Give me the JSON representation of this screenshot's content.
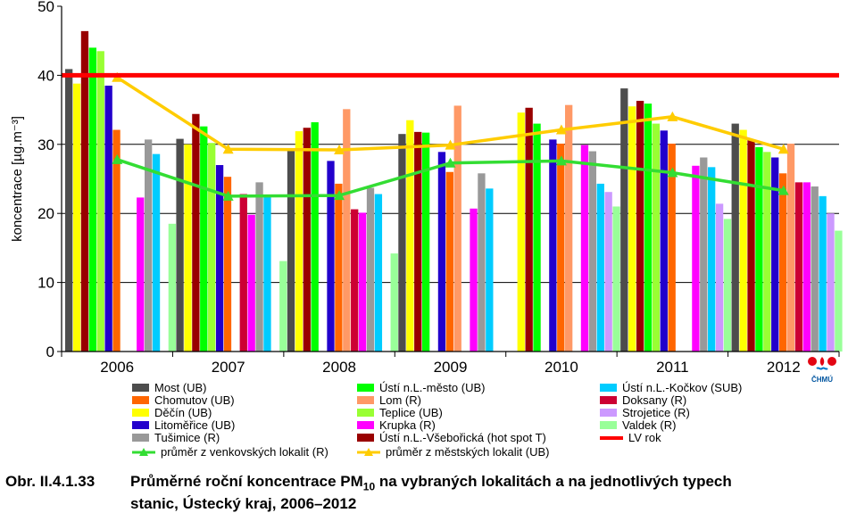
{
  "chart_data": {
    "type": "bar",
    "ylabel": "koncentrace [µg.m⁻³]",
    "ylim": [
      0,
      50
    ],
    "yticks": [
      0,
      10,
      20,
      30,
      40,
      50
    ],
    "categories": [
      "2006",
      "2007",
      "2008",
      "2009",
      "2010",
      "2011",
      "2012"
    ],
    "limit_value": 40,
    "series": [
      {
        "name": "Most (UB)",
        "color": "#4d4d4d",
        "values": [
          40.9,
          30.8,
          29.2,
          31.5,
          null,
          38.1,
          33.0
        ]
      },
      {
        "name": "Děčín (UB)",
        "color": "#ffff00",
        "values": [
          38.8,
          30.0,
          31.9,
          33.5,
          34.6,
          35.5,
          32.1
        ]
      },
      {
        "name": "Ústí n.L.-Všebořická (hot spot T)",
        "color": "#990000",
        "values": [
          46.4,
          34.4,
          32.4,
          31.8,
          35.3,
          36.3,
          30.7
        ]
      },
      {
        "name": "Ústí n.L.-město (UB)",
        "color": "#00ff00",
        "values": [
          44.0,
          32.6,
          33.2,
          31.7,
          33.0,
          35.9,
          29.6
        ]
      },
      {
        "name": "Teplice (UB)",
        "color": "#99ff33",
        "values": [
          43.5,
          30.2,
          null,
          null,
          null,
          33.0,
          28.9
        ]
      },
      {
        "name": "Litoměřice (UB)",
        "color": "#2200cc",
        "values": [
          38.5,
          27.0,
          27.6,
          28.9,
          30.7,
          32.0,
          28.1
        ]
      },
      {
        "name": "Chomutov (UB)",
        "color": "#ff6600",
        "values": [
          32.1,
          25.3,
          24.3,
          26.0,
          30.1,
          30.1,
          25.8
        ]
      },
      {
        "name": "Lom (R)",
        "color": "#ff9966",
        "values": [
          null,
          null,
          35.1,
          35.6,
          35.7,
          null,
          30.1
        ]
      },
      {
        "name": "Doksany (R)",
        "color": "#cc0033",
        "values": [
          null,
          22.8,
          20.6,
          null,
          null,
          null,
          24.5
        ]
      },
      {
        "name": "Krupka (R)",
        "color": "#ff00ff",
        "values": [
          22.3,
          19.8,
          20.1,
          20.7,
          29.9,
          26.9,
          24.5
        ]
      },
      {
        "name": "Tušimice (R)",
        "color": "#999999",
        "values": [
          30.7,
          24.5,
          23.7,
          25.8,
          29.0,
          28.1,
          23.9
        ]
      },
      {
        "name": "Ústí n.L.-Kočkov (SUB)",
        "color": "#00ccff",
        "values": [
          28.6,
          22.6,
          22.8,
          23.6,
          24.3,
          26.7,
          22.5
        ]
      },
      {
        "name": "Strojetice (R)",
        "color": "#cc99ff",
        "values": [
          null,
          null,
          null,
          null,
          23.1,
          21.4,
          20.0
        ]
      },
      {
        "name": "Valdek (R)",
        "color": "#99ff99",
        "values": [
          18.5,
          13.1,
          14.2,
          null,
          21.0,
          19.2,
          17.5
        ]
      }
    ],
    "lines": [
      {
        "name": "průměr z venkovských lokalit (R)",
        "color": "#33dd33",
        "values": [
          27.8,
          22.5,
          22.6,
          27.3,
          27.6,
          25.9,
          23.3
        ]
      },
      {
        "name": "průměr z městských lokalit (UB)",
        "color": "#ffcc00",
        "values": [
          39.7,
          29.3,
          29.2,
          29.9,
          32.1,
          34.0,
          29.3
        ]
      },
      {
        "name": "LV rok",
        "color": "#ff0000",
        "values": [
          40,
          40,
          40,
          40,
          40,
          40,
          40
        ]
      }
    ]
  },
  "legend": {
    "col1": [
      "Most (UB)",
      "Chomutov (UB)",
      "Děčín (UB)",
      "Litoměřice (UB)",
      "Tušimice (R)"
    ],
    "col2": [
      "Ústí n.L.-město (UB)",
      "Lom (R)",
      "Teplice (UB)",
      "Krupka (R)",
      "Ústí n.L.-Všebořická (hot spot T)"
    ],
    "col3": [
      "Ústí n.L.-Kočkov (SUB)",
      "Doksany (R)",
      "Strojetice (R)",
      "Valdek (R)",
      "LV rok"
    ],
    "line_rural": "průměr z venkovských lokalit (R)",
    "line_urban": "průměr z městských lokalit (UB)"
  },
  "logo_text": "ČHMÚ",
  "caption": {
    "number": "Obr. II.4.1.33",
    "line1_pre": "Průměrné roční koncentrace PM",
    "subscript": "10",
    "line1_post": " na vybraných lokalitách a na jednotlivých typech",
    "line2": "stanic, Ústecký kraj, 2006–2012"
  }
}
